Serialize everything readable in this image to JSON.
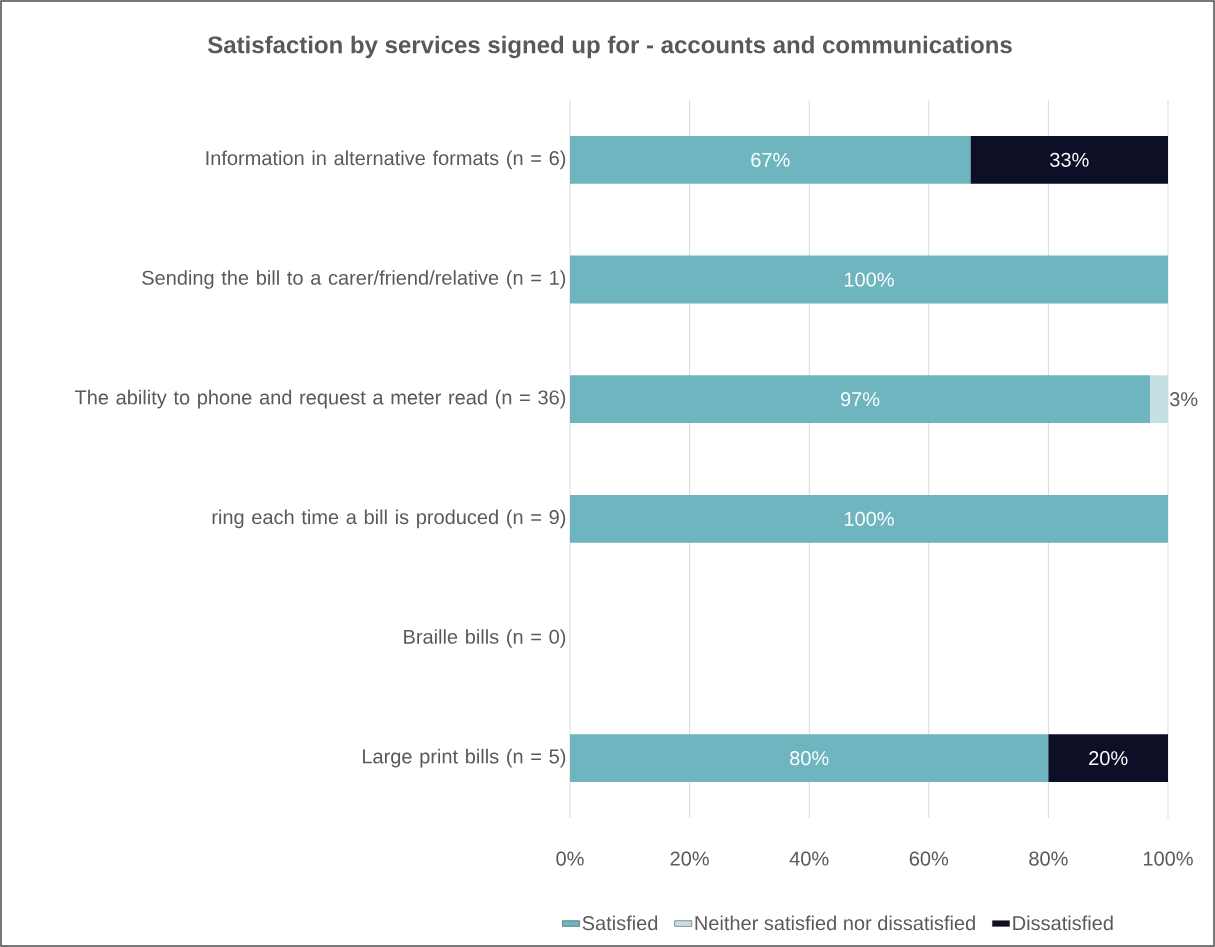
{
  "chart_data": {
    "type": "bar",
    "orientation": "horizontal",
    "stacked": true,
    "title": "Satisfaction by services signed up for - accounts and communications",
    "categories": [
      "Information in alternative formats  (n = 6)",
      "Sending the bill to a carer/friend/relative  (n = 1)",
      "The ability to phone and request a meter read  (n = 36)",
      "ring each time a bill is produced (n = 9)",
      "Braille bills (n = 0)",
      "Large print bills (n = 5)"
    ],
    "series": [
      {
        "name": "Satisfied",
        "color": "#6eb5bf",
        "values": [
          67,
          100,
          97,
          100,
          null,
          80
        ],
        "value_labels": [
          "67%",
          "100%",
          "97%",
          "100%",
          null,
          "80%"
        ]
      },
      {
        "name": "Neither satisfied nor dissatisfied",
        "color": "#c5e0e3",
        "values": [
          null,
          null,
          3,
          null,
          null,
          null
        ],
        "value_labels": [
          null,
          null,
          "3%",
          null,
          null,
          null
        ]
      },
      {
        "name": "Dissatisfied",
        "color": "#0d0f26",
        "values": [
          33,
          null,
          null,
          null,
          null,
          20
        ],
        "value_labels": [
          "33%",
          null,
          null,
          null,
          null,
          "20%"
        ]
      }
    ],
    "xlim": [
      0,
      100
    ],
    "xticks": [
      {
        "value": 0,
        "label": "0%"
      },
      {
        "value": 20,
        "label": "20%"
      },
      {
        "value": 40,
        "label": "40%"
      },
      {
        "value": 60,
        "label": "60%"
      },
      {
        "value": 80,
        "label": "80%"
      },
      {
        "value": 100,
        "label": "100%"
      }
    ],
    "grid": "x",
    "legend": "bottom"
  }
}
